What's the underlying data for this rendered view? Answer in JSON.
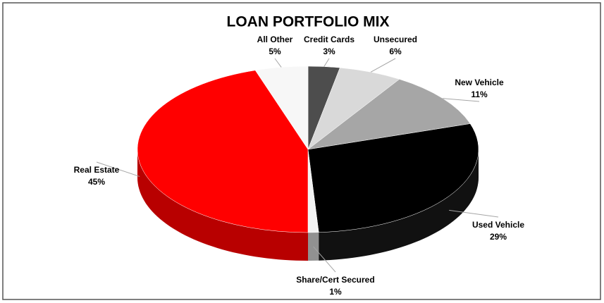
{
  "chart_data": {
    "type": "pie3d",
    "title": "LOAN PORTFOLIO MIX",
    "categories": [
      "Credit Cards",
      "Unsecured",
      "New Vehicle",
      "Used Vehicle",
      "Share/Cert Secured",
      "Real Estate",
      "All Other"
    ],
    "values": [
      3,
      6,
      11,
      29,
      1,
      45,
      5
    ],
    "value_labels": [
      "3%",
      "6%",
      "11%",
      "29%",
      "1%",
      "45%",
      "5%"
    ],
    "colors": [
      "#4d4d4d",
      "#d9d9d9",
      "#a6a6a6",
      "#000000",
      "#f2f2f2",
      "#ff0000",
      "#f7f7f7"
    ]
  }
}
